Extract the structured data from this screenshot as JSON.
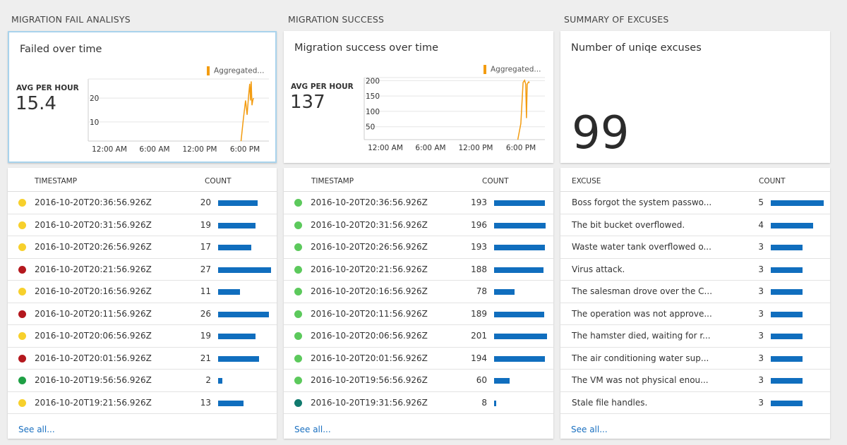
{
  "sections": [
    {
      "title": "MIGRATION FAIL ANALISYS"
    },
    {
      "title": "MIGRATION SUCCESS"
    },
    {
      "title": "SUMMARY OF EXCUSES"
    }
  ],
  "fail_tile": {
    "title": "Failed over time",
    "avg_label": "AVG PER HOUR",
    "avg_value": "15.4",
    "legend": "Aggregated...",
    "series_color": "#f39c11"
  },
  "success_tile": {
    "title": "Migration success over time",
    "avg_label": "AVG PER HOUR",
    "avg_value": "137",
    "legend": "Aggregated...",
    "series_color": "#f39c11"
  },
  "excuse_tile": {
    "title": "Number of uniqe excuses",
    "value": "99"
  },
  "chart_data": [
    {
      "type": "line",
      "x_ticks": [
        "12:00 AM",
        "6:00 AM",
        "12:00 PM",
        "6:00 PM"
      ],
      "y_ticks": [
        10,
        20
      ],
      "ylim": [
        2,
        28
      ],
      "xlim": [
        0,
        24
      ],
      "series": [
        {
          "x": [
            20.3,
            20.6,
            20.9,
            21.1,
            21.3,
            21.45,
            21.55,
            21.65,
            21.75,
            21.85,
            21.95
          ],
          "values": [
            2,
            11,
            19,
            13,
            21,
            26,
            19,
            27,
            17,
            19,
            20
          ]
        }
      ]
    },
    {
      "type": "line",
      "x_ticks": [
        "12:00 AM",
        "6:00 AM",
        "12:00 PM",
        "6:00 PM"
      ],
      "y_ticks": [
        50,
        100,
        150,
        200
      ],
      "ylim": [
        8,
        210
      ],
      "xlim": [
        0,
        24
      ],
      "series": [
        {
          "x": [
            20.4,
            20.8,
            21.1,
            21.3,
            21.45,
            21.55,
            21.65,
            21.75,
            21.85,
            21.95
          ],
          "values": [
            8,
            60,
            194,
            201,
            189,
            78,
            188,
            193,
            196,
            193
          ]
        }
      ]
    }
  ],
  "fail_table": {
    "col_timestamp": "TIMESTAMP",
    "col_count": "COUNT",
    "max": 27,
    "rows": [
      {
        "ts": "2016-10-20T20:36:56.926Z",
        "count": 20,
        "color": "#f7d02c"
      },
      {
        "ts": "2016-10-20T20:31:56.926Z",
        "count": 19,
        "color": "#f7d02c"
      },
      {
        "ts": "2016-10-20T20:26:56.926Z",
        "count": 17,
        "color": "#f7d02c"
      },
      {
        "ts": "2016-10-20T20:21:56.926Z",
        "count": 27,
        "color": "#b4181e"
      },
      {
        "ts": "2016-10-20T20:16:56.926Z",
        "count": 11,
        "color": "#f7d02c"
      },
      {
        "ts": "2016-10-20T20:11:56.926Z",
        "count": 26,
        "color": "#b4181e"
      },
      {
        "ts": "2016-10-20T20:06:56.926Z",
        "count": 19,
        "color": "#f7d02c"
      },
      {
        "ts": "2016-10-20T20:01:56.926Z",
        "count": 21,
        "color": "#b4181e"
      },
      {
        "ts": "2016-10-20T19:56:56.926Z",
        "count": 2,
        "color": "#1fa045"
      },
      {
        "ts": "2016-10-20T19:21:56.926Z",
        "count": 13,
        "color": "#f7d02c"
      }
    ],
    "see_all": "See all..."
  },
  "success_table": {
    "col_timestamp": "TIMESTAMP",
    "col_count": "COUNT",
    "max": 201,
    "rows": [
      {
        "ts": "2016-10-20T20:36:56.926Z",
        "count": 193,
        "color": "#5cc95c"
      },
      {
        "ts": "2016-10-20T20:31:56.926Z",
        "count": 196,
        "color": "#5cc95c"
      },
      {
        "ts": "2016-10-20T20:26:56.926Z",
        "count": 193,
        "color": "#5cc95c"
      },
      {
        "ts": "2016-10-20T20:21:56.926Z",
        "count": 188,
        "color": "#5cc95c"
      },
      {
        "ts": "2016-10-20T20:16:56.926Z",
        "count": 78,
        "color": "#5cc95c"
      },
      {
        "ts": "2016-10-20T20:11:56.926Z",
        "count": 189,
        "color": "#5cc95c"
      },
      {
        "ts": "2016-10-20T20:06:56.926Z",
        "count": 201,
        "color": "#5cc95c"
      },
      {
        "ts": "2016-10-20T20:01:56.926Z",
        "count": 194,
        "color": "#5cc95c"
      },
      {
        "ts": "2016-10-20T19:56:56.926Z",
        "count": 60,
        "color": "#5cc95c"
      },
      {
        "ts": "2016-10-20T19:31:56.926Z",
        "count": 8,
        "color": "#117a6e"
      }
    ],
    "see_all": "See all..."
  },
  "excuse_table": {
    "col_excuse": "EXCUSE",
    "col_count": "COUNT",
    "max": 5,
    "rows": [
      {
        "text": "Boss forgot the system passwo...",
        "count": 5
      },
      {
        "text": "The bit bucket overflowed.",
        "count": 4
      },
      {
        "text": "Waste water tank overflowed o...",
        "count": 3
      },
      {
        "text": "Virus attack.",
        "count": 3
      },
      {
        "text": "The salesman drove over the C...",
        "count": 3
      },
      {
        "text": "The operation was not approve...",
        "count": 3
      },
      {
        "text": "The hamster died, waiting for r...",
        "count": 3
      },
      {
        "text": "The air conditioning water sup...",
        "count": 3
      },
      {
        "text": "The VM was not physical enou...",
        "count": 3
      },
      {
        "text": "Stale file handles.",
        "count": 3
      }
    ],
    "see_all": "See all..."
  }
}
